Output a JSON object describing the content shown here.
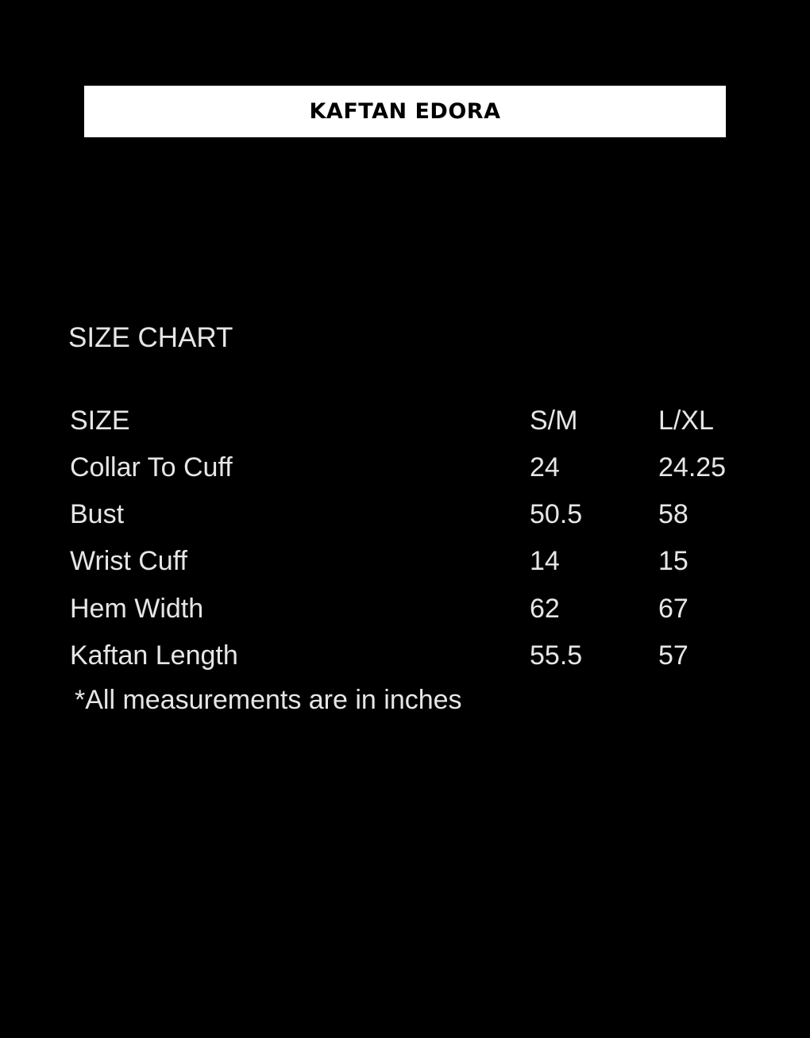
{
  "banner": {
    "title": "KAFTAN EDORA"
  },
  "section_title": "SIZE CHART",
  "table": {
    "headers": [
      "SIZE",
      "S/M",
      "L/XL"
    ],
    "rows": [
      [
        "Collar To Cuff",
        "24",
        "24.25"
      ],
      [
        "Bust",
        "50.5",
        "58"
      ],
      [
        "Wrist Cuff",
        "14",
        "15"
      ],
      [
        "Hem Width",
        "62",
        "67"
      ],
      [
        "Kaftan Length",
        "55.5",
        "57"
      ]
    ]
  },
  "note": "*All measurements are in inches"
}
